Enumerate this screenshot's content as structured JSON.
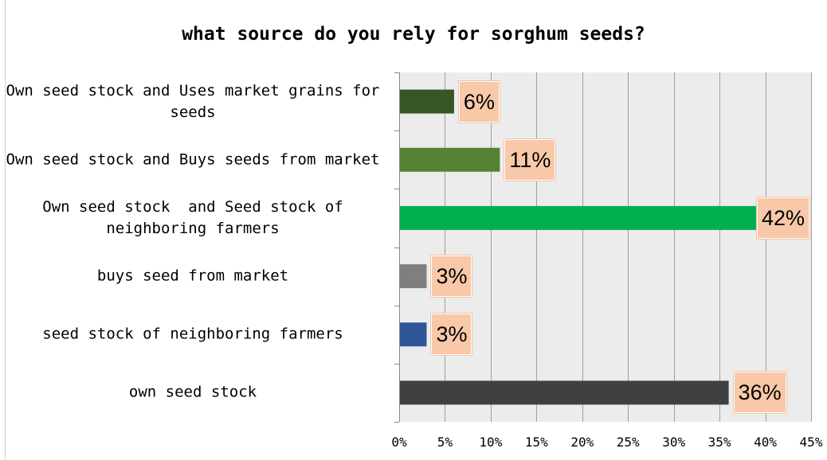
{
  "chart_data": {
    "type": "bar",
    "orientation": "horizontal",
    "title": "what source do you rely for sorghum seeds?",
    "categories": [
      "Own seed stock and Uses market grains for seeds",
      "Own seed stock and Buys seeds from market",
      "Own seed stock  and Seed stock of neighboring farmers",
      "buys seed from market",
      "seed stock of neighboring farmers",
      "own seed stock"
    ],
    "values": [
      0.06,
      0.11,
      0.42,
      0.03,
      0.03,
      0.36
    ],
    "data_labels": [
      "6%",
      "11%",
      "42%",
      "3%",
      "3%",
      "36%"
    ],
    "colors": [
      "#375623",
      "#548235",
      "#00b050",
      "#7f7f7f",
      "#2f5597",
      "#404040"
    ],
    "x_ticks": [
      "0%",
      "5%",
      "10%",
      "15%",
      "20%",
      "25%",
      "30%",
      "35%",
      "40%",
      "45%"
    ],
    "xlim": [
      0,
      0.45
    ],
    "grid": true,
    "legend": "none",
    "label_box_color": "#f8c8a8",
    "plot_background": "#ececec"
  }
}
